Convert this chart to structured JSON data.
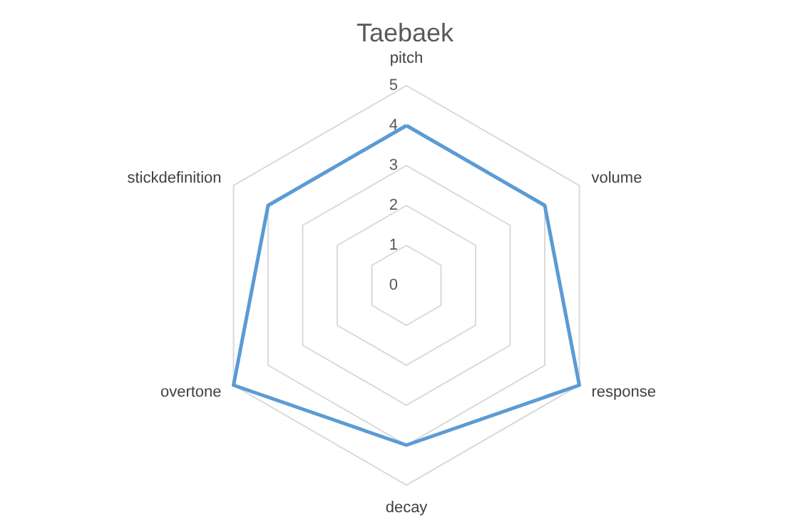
{
  "chart_data": {
    "type": "radar",
    "title": "Taebaek",
    "categories": [
      "pitch",
      "volume",
      "response",
      "decay",
      "overtone",
      "stickdefinition"
    ],
    "series": [
      {
        "color": "#5b9bd5",
        "values": [
          4,
          4,
          5,
          4,
          5,
          4
        ]
      }
    ],
    "ylim": [
      0,
      5
    ],
    "yticks": [
      0,
      1,
      2,
      3,
      4,
      5
    ],
    "grid": true
  }
}
